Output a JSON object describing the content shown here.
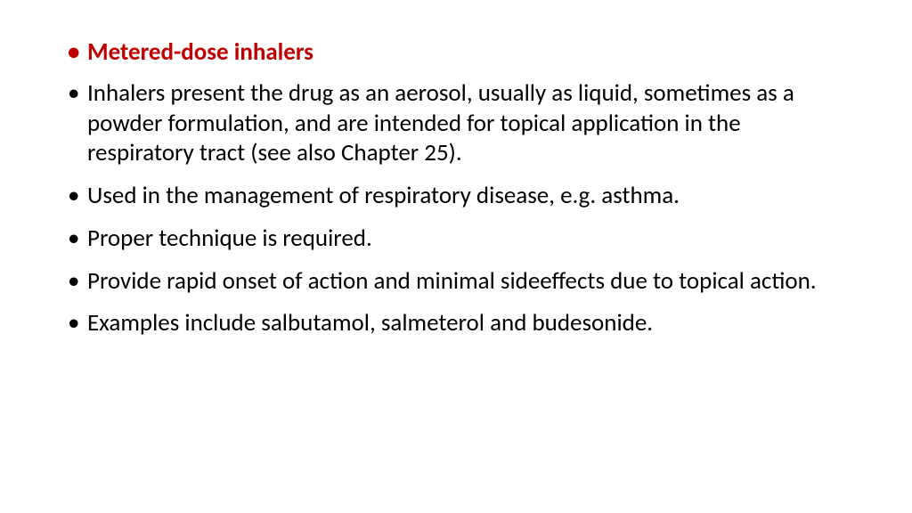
{
  "slide": {
    "heading": "Metered-dose inhalers",
    "bullets": [
      "Inhalers present the drug as an aerosol, usually as liquid, sometimes as a powder formulation, and are intended for topical application in the respiratory tract (see also Chapter 25).",
      "Used in the management of respiratory disease, e.g. asthma.",
      "Proper technique is required.",
      " Provide rapid onset of action and minimal sideeffects due to topical action.",
      "Examples include salbutamol, salmeterol and budesonide."
    ],
    "heading_color": "#c00000",
    "text_color": "#000000",
    "background_color": "#ffffff",
    "font_size_pt": 20
  }
}
